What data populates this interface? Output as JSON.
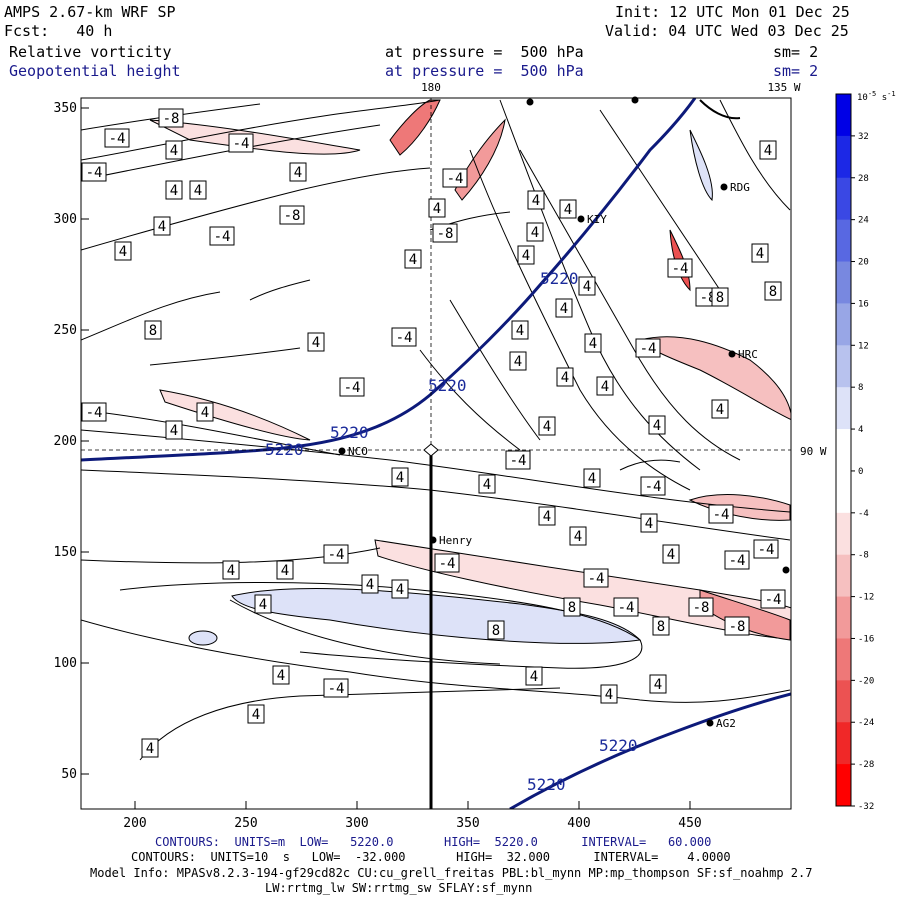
{
  "header": {
    "model": "AMPS 2.67-km WRF SP",
    "fcst": "Fcst:   40 h",
    "init": "Init: 12 UTC Mon 01 Dec 25",
    "valid": "Valid: 04 UTC Wed 03 Dec 25",
    "field1": "Relative vorticity",
    "field2": "Geopotential height",
    "level1": "at pressure =  500 hPa",
    "level2": "at pressure =  500 hPa",
    "sm1": "sm= 2",
    "sm2": "sm= 2"
  },
  "map": {
    "x_ticks": [
      "200",
      "250",
      "300",
      "350",
      "400",
      "450"
    ],
    "y_ticks": [
      "350",
      "300",
      "250",
      "200",
      "150",
      "100",
      "50"
    ],
    "lon_180": "180",
    "lon_135w": "135 W",
    "lon_90w": "90 W",
    "stations": {
      "rdg": "RDG",
      "kiy": "KIY",
      "hrc": "HRC",
      "nco": "NCO",
      "henry": "Henry",
      "ag2": "AG2"
    },
    "height_labels": [
      "5220",
      "5220",
      "5220",
      "5220",
      "5220",
      "5220"
    ],
    "vort_labels": [
      "-8",
      "-4",
      "4",
      "-4",
      "-4",
      "4",
      "4",
      "4",
      "-4",
      "4",
      "-8",
      "-8",
      "4",
      "4",
      "-4",
      "4",
      "-4",
      "4",
      "4",
      "4",
      "-8",
      "8",
      "8",
      "4",
      "8",
      "4",
      "4",
      "4",
      "-4",
      "4",
      "-4",
      "4",
      "-4",
      "-4",
      "4",
      "4",
      "4",
      "4",
      "4",
      "4",
      "4",
      "-4",
      "4",
      "-4",
      "4",
      "-4",
      "4",
      "4",
      "-4",
      "-4",
      "-4",
      "4",
      "-4",
      "-4",
      "4",
      "4",
      "4",
      "4",
      "4",
      "-4",
      "-8",
      "-8",
      "-4",
      "8",
      "8",
      "8",
      "4",
      "-4",
      "4",
      "4",
      "4",
      "4",
      "4",
      "4",
      "4",
      "4",
      "4",
      "4"
    ]
  },
  "colorbar": {
    "unit_label": "10",
    "unit_exp": "-5",
    "unit_suffix": "s",
    "unit_suffix_exp": "-1",
    "ticks": [
      "32",
      "28",
      "24",
      "20",
      "16",
      "12",
      "8",
      "4",
      "0",
      "-4",
      "-8",
      "-12",
      "-16",
      "-20",
      "-24",
      "-28",
      "-32"
    ],
    "colors": [
      "#0000e6",
      "#1c28e6",
      "#3a48e4",
      "#5868e2",
      "#7888e0",
      "#98a6e6",
      "#b8c2ee",
      "#dde2f8",
      "#ffffff",
      "#ffffff",
      "#fbe0e0",
      "#f6c0c0",
      "#f29a9a",
      "#ee7878",
      "#ec5252",
      "#f02828",
      "#ff0000"
    ]
  },
  "footer": {
    "line1": "CONTOURS:  UNITS=m  LOW=   5220.0       HIGH=  5220.0      INTERVAL=   60.000",
    "line2": "CONTOURS:  UNITS=10  s   LOW=  -32.000       HIGH=  32.000      INTERVAL=    4.0000",
    "line3": "Model Info: MPASv8.2.3-194-gf29cd82c CU:cu_grell_freitas PBL:bl_mynn MP:mp_thompson SF:sf_noahmp 2.7",
    "line4": "LW:rrtmg_lw SW:rrtmg_sw SFLAY:sf_mynn"
  }
}
